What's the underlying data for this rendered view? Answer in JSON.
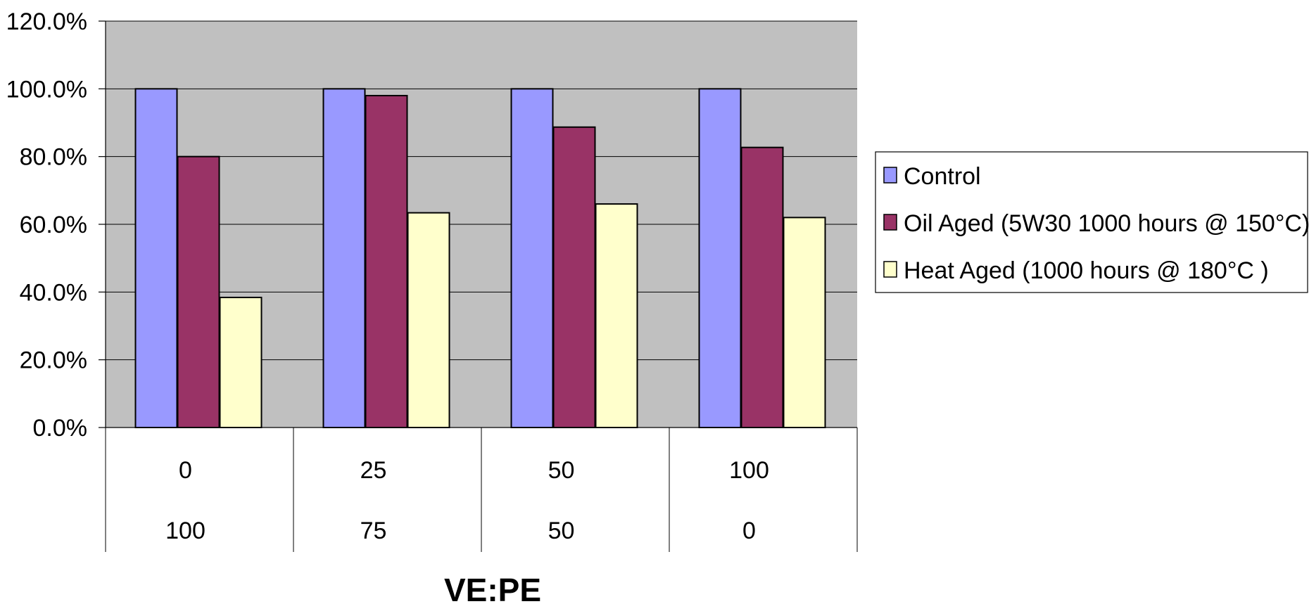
{
  "chart_data": {
    "type": "bar",
    "categories": [
      {
        "row1": "0",
        "row2": "100"
      },
      {
        "row1": "25",
        "row2": "75"
      },
      {
        "row1": "50",
        "row2": "50"
      },
      {
        "row1": "100",
        "row2": "0"
      }
    ],
    "series": [
      {
        "name": "Control",
        "color": "#9999ff",
        "values": [
          1.0,
          1.0,
          1.0,
          1.0
        ]
      },
      {
        "name": "Oil Aged (5W30 1000 hours @ 150°C)",
        "color": "#993366",
        "values": [
          0.8,
          0.98,
          0.887,
          0.827
        ]
      },
      {
        "name": "Heat Aged (1000 hours @ 180°C )",
        "color": "#ffffcc",
        "values": [
          0.384,
          0.634,
          0.66,
          0.62
        ]
      }
    ],
    "ylim": [
      0,
      1.2
    ],
    "yticks": [
      "0.0%",
      "20.0%",
      "40.0%",
      "60.0%",
      "80.0%",
      "100.0%",
      "120.0%"
    ],
    "xlabel": "VE:PE",
    "ylabel": "",
    "title": "",
    "plot_background": "#c0c0c0",
    "grid": true,
    "legend_position": "right"
  }
}
